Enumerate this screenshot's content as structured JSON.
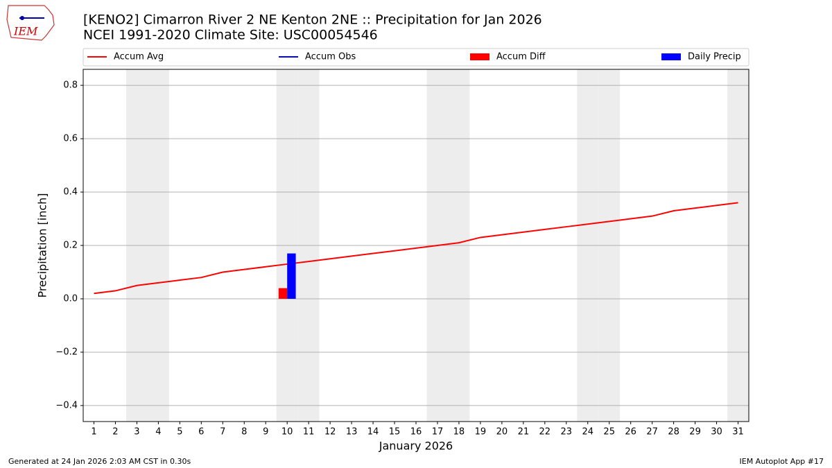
{
  "logo_text": "IEM",
  "footer_left": "Generated at 24 Jan 2026 2:03 AM CST in 0.30s",
  "footer_right": "IEM Autoplot App #17",
  "chart_data": {
    "type": "line",
    "title": "[KENO2] Cimarron River 2 NE Kenton 2NE :: Precipitation for Jan 2026",
    "subtitle": "NCEI 1991-2020 Climate Site: USC00054546",
    "x_label": "January 2026",
    "y_label": "Precipitation [inch]",
    "x": [
      1,
      2,
      3,
      4,
      5,
      6,
      7,
      8,
      9,
      10,
      11,
      12,
      13,
      14,
      15,
      16,
      17,
      18,
      19,
      20,
      21,
      22,
      23,
      24,
      25,
      26,
      27,
      28,
      29,
      30,
      31
    ],
    "xticks": [
      1,
      2,
      3,
      4,
      5,
      6,
      7,
      8,
      9,
      10,
      11,
      12,
      13,
      14,
      15,
      16,
      17,
      18,
      19,
      20,
      21,
      22,
      23,
      24,
      25,
      26,
      27,
      28,
      29,
      30,
      31
    ],
    "xlim": [
      0.5,
      31.5
    ],
    "ylim": [
      -0.46,
      0.86
    ],
    "yticks": [
      {
        "value": -0.4,
        "label": "−0.4"
      },
      {
        "value": -0.2,
        "label": "−0.2"
      },
      {
        "value": 0,
        "label": "0.0"
      },
      0.2,
      0.4,
      0.6,
      0.8
    ],
    "grid": true,
    "weekend_days": [
      3,
      4,
      10,
      11,
      17,
      18,
      24,
      25,
      31
    ],
    "series": [
      {
        "name": "Accum Avg",
        "kind": "line",
        "color": "#ff0000",
        "values": [
          0.02,
          0.03,
          0.05,
          0.06,
          0.07,
          0.08,
          0.1,
          0.11,
          0.12,
          0.13,
          0.14,
          0.15,
          0.16,
          0.17,
          0.18,
          0.19,
          0.2,
          0.21,
          0.23,
          0.24,
          0.25,
          0.26,
          0.27,
          0.28,
          0.29,
          0.3,
          0.31,
          0.33,
          0.34,
          0.35,
          0.36
        ]
      },
      {
        "name": "Accum Obs",
        "kind": "line",
        "color": "#0000ff",
        "values": [
          null,
          null,
          null,
          null,
          null,
          null,
          null,
          null,
          null,
          null,
          null,
          null,
          null,
          null,
          null,
          null,
          null,
          null,
          null,
          null,
          null,
          null,
          null,
          null,
          null,
          null,
          null,
          null,
          null,
          null,
          null
        ]
      },
      {
        "name": "Accum Diff",
        "kind": "bar",
        "color": "#ff0000",
        "values": [
          null,
          null,
          null,
          null,
          null,
          null,
          null,
          null,
          null,
          0.04,
          null,
          null,
          null,
          null,
          null,
          null,
          null,
          null,
          null,
          null,
          null,
          null,
          null,
          null,
          null,
          null,
          null,
          null,
          null,
          null,
          null
        ]
      },
      {
        "name": "Daily Precip",
        "kind": "bar",
        "color": "#0000ff",
        "values": [
          null,
          null,
          null,
          null,
          null,
          null,
          null,
          null,
          null,
          0.17,
          null,
          null,
          null,
          null,
          null,
          null,
          null,
          null,
          null,
          null,
          null,
          null,
          null,
          null,
          null,
          null,
          null,
          null,
          null,
          null,
          null
        ]
      }
    ]
  }
}
